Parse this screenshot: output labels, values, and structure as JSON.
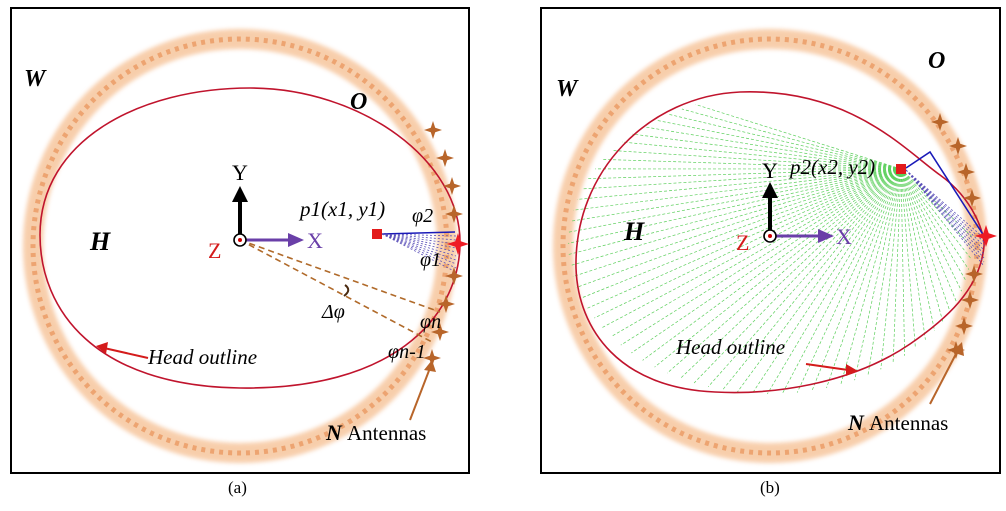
{
  "panels": [
    {
      "caption": "(a)",
      "label_w": "W",
      "label_o": "O",
      "label_h": "H",
      "axis_y": "Y",
      "axis_x": "X",
      "axis_z": "Z",
      "point_label": "p1(x1, y1)",
      "angle_labels": [
        "φ2",
        "φ1",
        "Δφ",
        "φn",
        "φn-1"
      ],
      "outline_label": "Head outline",
      "antennas_n": "N",
      "antennas_label": "Antennas"
    },
    {
      "caption": "(b)",
      "label_w": "W",
      "label_o": "O",
      "label_h": "H",
      "axis_y": "Y",
      "axis_x": "X",
      "axis_z": "Z",
      "point_label": "p2(x2, y2)",
      "outline_label": "Head outline",
      "antennas_n": "N",
      "antennas_label": "Antennas"
    }
  ],
  "colors": {
    "head_outline": "#c0142d",
    "ring": "#f6c59d",
    "ring_dash": "#e9955c",
    "star": "#b8652a",
    "active_star": "#ee1b24",
    "point": "#e31b1b",
    "x_axis": "#6a3fa8",
    "z_label": "#d41b1b",
    "dashed_lines": "#b06a2a",
    "green_rays": "#5ccf5c",
    "ray_blue": "#1a1ab8"
  }
}
